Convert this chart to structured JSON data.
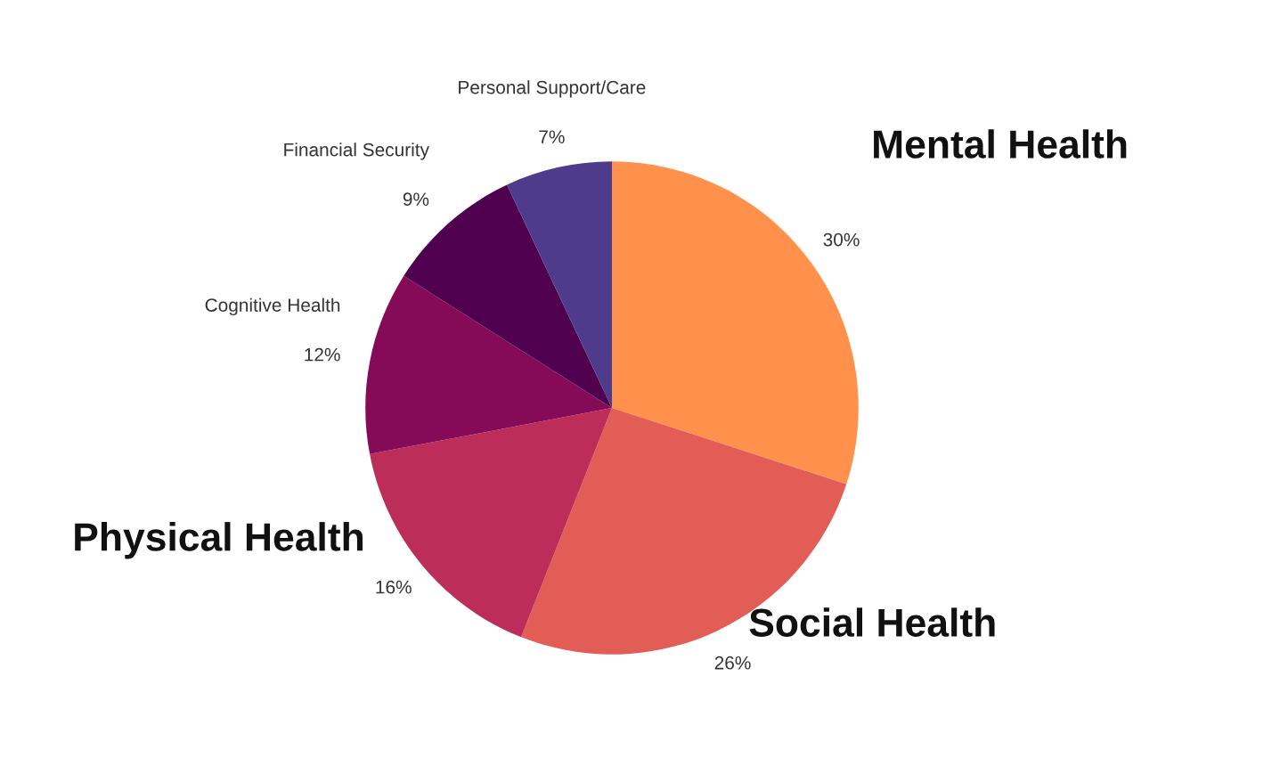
{
  "chart_data": {
    "type": "pie",
    "categories": [
      "Mental Health",
      "Social Health",
      "Physical Health",
      "Cognitive Health",
      "Financial Security",
      "Personal Support/Care"
    ],
    "values": [
      30,
      26,
      16,
      12,
      9,
      7
    ],
    "colors": [
      "#ff914d",
      "#e35d57",
      "#bc2e59",
      "#850a57",
      "#4f004f",
      "#4e3b8c"
    ],
    "value_labels": [
      "30%",
      "26%",
      "16%",
      "12%",
      "9%",
      "7%"
    ],
    "legend": false
  }
}
